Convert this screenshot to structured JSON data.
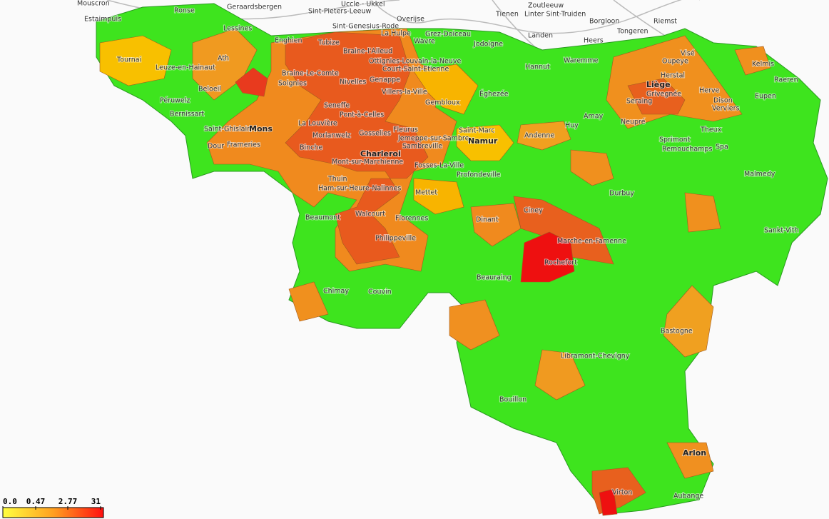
{
  "places": [
    "Mouscron",
    "Estaimpuis",
    "Ronse",
    "Geraardsbergen",
    "Sint-Pieters-Leeuw",
    "Uccle - Ukkel",
    "Overijse",
    "Sint-Genesius-Rode",
    "Tienen",
    "Zoutleeuw",
    "Linter Sint-Truiden",
    "Borgloon",
    "Riemst",
    "Tongeren",
    "Landen",
    "Heers",
    "Lessines",
    "Ath",
    "Tournai",
    "Leuze-en-Hainaut",
    "Enghien",
    "Tubize",
    "Braine-l'Alleud",
    "La Hulpe",
    "Grez-Doiceau",
    "Wavre",
    "Jodoigne",
    "Ottignies-Louvain-la-Neuve",
    "Court-Saint-Etienne",
    "Braine-Le-Comte",
    "Soignies",
    "Nivelles",
    "Genappe",
    "Villers-la-Ville",
    "Hannut",
    "Waremme",
    "Visé",
    "Oupeye",
    "Herstal",
    "Liège",
    "Seraing",
    "Grivegnée",
    "Herve",
    "Dison",
    "Verviers",
    "Kelmis",
    "Raeren",
    "Eupen",
    "Péruwelz",
    "Beloeil",
    "Bernissart",
    "Gembloux",
    "Éghezée",
    "Seneffe",
    "Pont-à-Celles",
    "La Louvière",
    "Fleurus",
    "Jemeppe-sur-Sambre",
    "Saint-Marc",
    "Namur",
    "Andenne",
    "Huy",
    "Amay",
    "Neupré",
    "Sprimont",
    "Theux",
    "Spa",
    "Remouchamps",
    "Saint-Ghislain",
    "Mons",
    "Morlanwelz",
    "Gosselies",
    "Sambreville",
    "Dour",
    "Frameries",
    "Binche",
    "Charleroi",
    "Mont-sur-Marchienne",
    "Fosses-La-Ville",
    "Profondeville",
    "Malmedy",
    "Thuin",
    "Ham-sur-Heure-Nalinnes",
    "Mettet",
    "Durbuy",
    "Beaumont",
    "Walcourt",
    "Florennes",
    "Dinant",
    "Ciney",
    "Sankt-Vith",
    "Marche-en-Famenne",
    "Philippeville",
    "Rochefort",
    "Beauraing",
    "Chimay",
    "Couvin",
    "Bastogne",
    "Libramont-Chevigny",
    "Bouillon",
    "Arlon",
    "Virton",
    "Aubange"
  ],
  "legend": {
    "ticks": [
      {
        "value": 0,
        "label": "0.0"
      },
      0.47,
      2.77,
      31
    ]
  }
}
